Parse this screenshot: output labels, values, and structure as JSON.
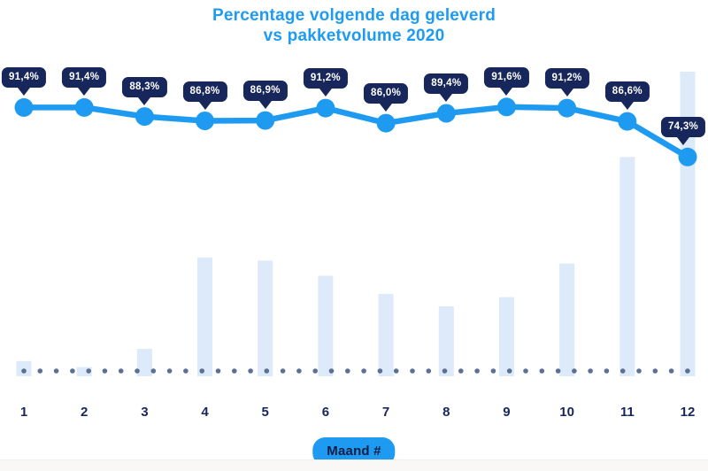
{
  "title": {
    "line1": "Percentage volgende dag geleverd",
    "line2": "vs pakketvolume 2020"
  },
  "x_axis": {
    "badge_label": "Maand #"
  },
  "chart_data": {
    "type": "combo (line over bar)",
    "title": "Percentage volgende dag geleverd vs pakketvolume 2020",
    "xlabel": "Maand #",
    "categories": [
      1,
      2,
      3,
      4,
      5,
      6,
      7,
      8,
      9,
      10,
      11,
      12
    ],
    "series": [
      {
        "name": "Percentage volgende dag geleverd",
        "type": "line",
        "unit": "%",
        "values": [
          91.4,
          91.4,
          88.3,
          86.8,
          86.9,
          91.2,
          86.0,
          89.4,
          91.6,
          91.2,
          86.6,
          74.3
        ],
        "point_labels": [
          "91,4%",
          "91,4%",
          "88,3%",
          "86,8%",
          "86,9%",
          "91,2%",
          "86,0%",
          "89,4%",
          "91,6%",
          "91,2%",
          "86,6%",
          "74,3%"
        ]
      },
      {
        "name": "Pakketvolume 2020",
        "type": "bar",
        "unit": "percent of max volume, estimated from unlabeled bar heights",
        "values": [
          5,
          3,
          9,
          39,
          38,
          33,
          27,
          23,
          26,
          37,
          72,
          100
        ]
      }
    ],
    "legend": "none",
    "grid": "none",
    "baseline_style": "dotted",
    "y_axis": "hidden",
    "colors": {
      "line": "#1e9bf0",
      "marker": "#1e9bf0",
      "point_label_badge_bg": "#17275b",
      "point_label_badge_text": "#ffffff",
      "bar_fill": "#ddeafa",
      "dotted_baseline": "#5c7095",
      "axis_text": "#17275b",
      "title_text": "#1e9bf0",
      "xlabel_badge_bg": "#1e9bf0",
      "xlabel_badge_text": "#0e1e45"
    }
  }
}
